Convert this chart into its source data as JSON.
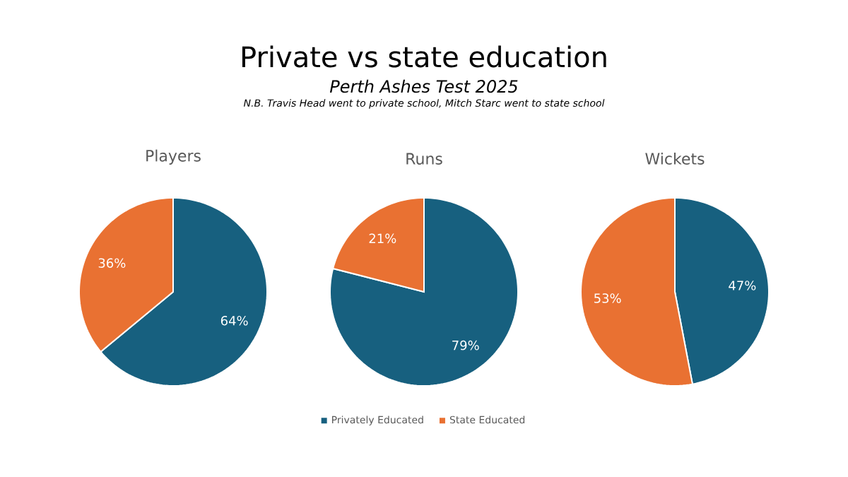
{
  "chart_data": [
    {
      "type": "other",
      "title": "Private vs state education",
      "subtitle": "Perth Ashes Test 2025",
      "annotations": [
        "N.B. Travis Head went to private school, Mitch Starc went to state school"
      ]
    },
    {
      "type": "pie",
      "title": "Players",
      "categories": [
        null,
        null
      ],
      "values": [
        64,
        36
      ],
      "colors": [
        "#17607f",
        "#e97132"
      ],
      "value_labels": [
        "64%",
        "36%"
      ]
    },
    {
      "type": "pie",
      "title": "Runs",
      "categories": [
        "Privately Educated",
        "State Educated"
      ],
      "values": [
        79,
        21
      ],
      "colors": [
        "#17607f",
        "#e97132"
      ],
      "value_labels": [
        "79%",
        "21%"
      ],
      "legend": "bottom"
    },
    {
      "type": "pie",
      "title": "Wickets",
      "categories": [
        null,
        null
      ],
      "values": [
        47,
        53
      ],
      "colors": [
        "#17607f",
        "#e97132"
      ],
      "value_labels": [
        "47%",
        "53%"
      ]
    }
  ]
}
